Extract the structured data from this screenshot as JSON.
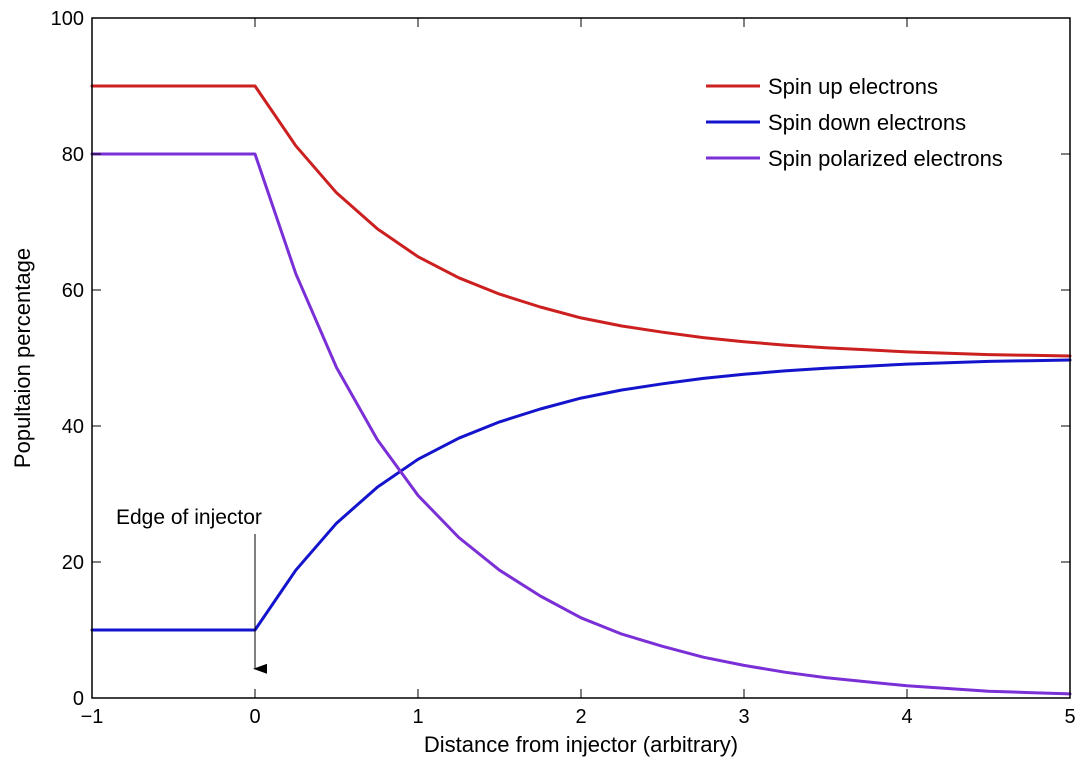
{
  "chart_data": {
    "type": "line",
    "title": "",
    "xlabel": "Distance from injector (arbitrary)",
    "ylabel": "Popultaion percentage",
    "xlim": [
      -1,
      5
    ],
    "ylim": [
      0,
      100
    ],
    "xticks": [
      -1,
      0,
      1,
      2,
      3,
      4,
      5
    ],
    "xtick_labels": [
      "−1",
      "0",
      "1",
      "2",
      "3",
      "4",
      "5"
    ],
    "yticks": [
      0,
      20,
      40,
      60,
      80,
      100
    ],
    "ytick_labels": [
      "0",
      "20",
      "40",
      "60",
      "80",
      "100"
    ],
    "grid": false,
    "legend_position": "top-right",
    "x": [
      -1,
      0,
      0.25,
      0.5,
      0.75,
      1,
      1.25,
      1.5,
      1.75,
      2,
      2.25,
      2.5,
      2.75,
      3,
      3.25,
      3.5,
      3.75,
      4,
      4.25,
      4.5,
      4.75,
      5
    ],
    "series": [
      {
        "name": "Spin up electrons",
        "color": "#cc1f1f",
        "values": [
          90,
          90,
          81.2,
          74.3,
          69.0,
          64.9,
          61.8,
          59.4,
          57.5,
          55.9,
          54.7,
          53.8,
          53.0,
          52.4,
          51.9,
          51.5,
          51.2,
          50.9,
          50.7,
          50.5,
          50.4,
          50.3
        ]
      },
      {
        "name": "Spin down electrons",
        "color": "#1414cc",
        "values": [
          10,
          10,
          18.8,
          25.7,
          31.0,
          35.1,
          38.2,
          40.6,
          42.5,
          44.1,
          45.3,
          46.2,
          47.0,
          47.6,
          48.1,
          48.5,
          48.8,
          49.1,
          49.3,
          49.5,
          49.6,
          49.7
        ]
      },
      {
        "name": "Spin polarized electrons",
        "color": "#7b2fd6",
        "values": [
          80,
          80,
          62.4,
          48.6,
          38.0,
          29.8,
          23.6,
          18.8,
          15.0,
          11.8,
          9.4,
          7.6,
          6.0,
          4.8,
          3.8,
          3.0,
          2.4,
          1.8,
          1.4,
          1.0,
          0.8,
          0.6
        ]
      }
    ],
    "annotations": [
      {
        "text": "Edge of injector",
        "arrow_to": [
          0,
          4
        ]
      }
    ]
  }
}
